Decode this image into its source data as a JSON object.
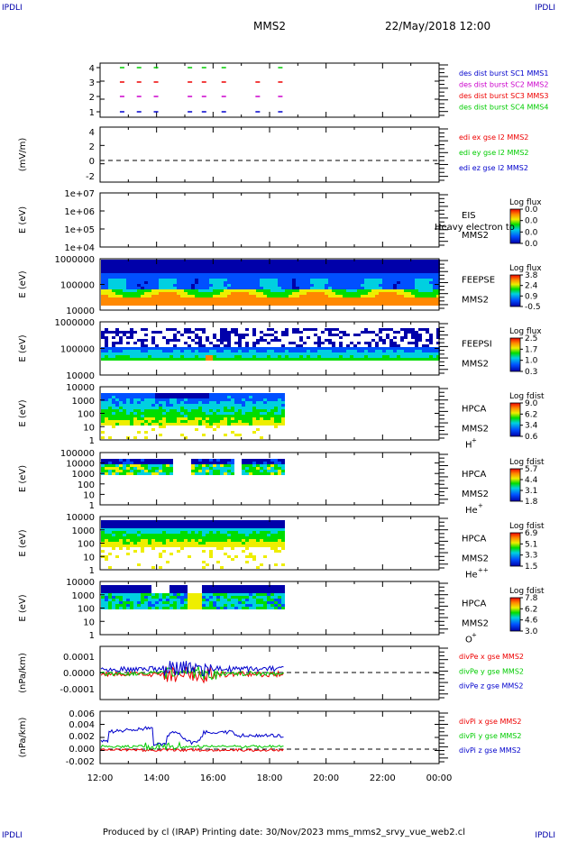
{
  "corners": {
    "tl": "IPDLI",
    "tr": "IPDLI",
    "bl": "IPDLI",
    "br": "IPDLI"
  },
  "header": {
    "spacecraft": "MMS2",
    "datetime": "22/May/2018 12:00"
  },
  "footer": {
    "text": "Produced by cl (IRAP)    Printing date: 30/Nov/2023    mms_mms2_srvy_vue_web2.cl"
  },
  "time_axis": {
    "ticks": [
      "12:00",
      "14:00",
      "16:00",
      "18:00",
      "20:00",
      "22:00",
      "00:00"
    ]
  },
  "colors": {
    "red": "#ee0000",
    "green": "#00cc00",
    "blue": "#0000cc",
    "magenta": "#cc00cc"
  },
  "chart_data": [
    {
      "id": "dist_burst",
      "type": "scatter",
      "yticks": [
        "1",
        "2",
        "3",
        "4"
      ],
      "legend": [
        {
          "text": "des dist burst SC1 MMS1",
          "color": "#0000cc"
        },
        {
          "text": "des dist burst SC2 MMS2",
          "color": "#cc00cc"
        },
        {
          "text": "des dist burst SC3 MMS3",
          "color": "#ee0000"
        },
        {
          "text": "des dist burst SC4 MMS4",
          "color": "#00cc00"
        }
      ],
      "series": [
        {
          "level": 4,
          "color": "#00cc00",
          "hours": [
            12.7,
            13.3,
            13.9,
            15.1,
            15.6,
            16.3,
            18.3
          ]
        },
        {
          "level": 3,
          "color": "#ee0000",
          "hours": [
            12.7,
            13.3,
            13.9,
            15.1,
            15.6,
            16.3,
            17.5,
            18.3
          ]
        },
        {
          "level": 2,
          "color": "#cc00cc",
          "hours": [
            12.7,
            13.3,
            13.9,
            15.1,
            15.6,
            16.3,
            17.5,
            18.3
          ]
        },
        {
          "level": 1,
          "color": "#0000cc",
          "hours": [
            12.7,
            13.3,
            13.9,
            15.1,
            15.6,
            16.3,
            17.5,
            18.3
          ]
        }
      ]
    },
    {
      "id": "edi",
      "type": "line",
      "ylabel": "(mV/m)",
      "yticks": [
        "4",
        "2",
        "0",
        "-2"
      ],
      "legend": [
        {
          "text": "edi ex gse l2 MMS2",
          "color": "#ee0000"
        },
        {
          "text": "edi ey gse l2 MMS2",
          "color": "#00cc00"
        },
        {
          "text": "edi ez gse l2 MMS2",
          "color": "#0000cc"
        }
      ]
    },
    {
      "id": "eis",
      "type": "heatmap",
      "ylabel": "E (eV)",
      "yticks": [
        "1e+07",
        "1e+06",
        "1e+05",
        "1e+04"
      ],
      "instrument": "EIS",
      "sc": "MMS2",
      "extra": "Heavy electron to",
      "cbar_title": "Log flux",
      "cbar_ticks": [
        "0.0",
        "0.0",
        "0.0",
        "0.0"
      ]
    },
    {
      "id": "feepse",
      "type": "heatmap",
      "ylabel": "E (eV)",
      "yticks": [
        "1000000",
        "100000",
        "10000"
      ],
      "instrument": "FEEPSE",
      "sc": "MMS2",
      "cbar_title": "Log flux",
      "cbar_ticks": [
        "3.8",
        "2.4",
        "0.9",
        "-0.5"
      ]
    },
    {
      "id": "feepsi",
      "type": "heatmap",
      "ylabel": "E (eV)",
      "yticks": [
        "1000000",
        "100000",
        "10000"
      ],
      "instrument": "FEEPSI",
      "sc": "MMS2",
      "cbar_title": "Log flux",
      "cbar_ticks": [
        "2.5",
        "1.7",
        "1.0",
        "0.3"
      ]
    },
    {
      "id": "hpca_h",
      "type": "heatmap",
      "ylabel": "E (eV)",
      "yticks": [
        "10000",
        "1000",
        "100",
        "10",
        "1"
      ],
      "instrument": "HPCA",
      "sc": "MMS2",
      "species": "H",
      "charge": "+",
      "cbar_title": "Log fdist",
      "cbar_ticks": [
        "9.0",
        "6.2",
        "3.4",
        "0.6"
      ]
    },
    {
      "id": "hpca_he",
      "type": "heatmap",
      "ylabel": "E (eV)",
      "yticks": [
        "100000",
        "10000",
        "1000",
        "100",
        "10",
        "1"
      ],
      "instrument": "HPCA",
      "sc": "MMS2",
      "species": "He",
      "charge": "+",
      "cbar_title": "Log fdist",
      "cbar_ticks": [
        "5.7",
        "4.4",
        "3.1",
        "1.8"
      ]
    },
    {
      "id": "hpca_hepp",
      "type": "heatmap",
      "ylabel": "E (eV)",
      "yticks": [
        "10000",
        "1000",
        "100",
        "10",
        "1"
      ],
      "instrument": "HPCA",
      "sc": "MMS2",
      "species": "He",
      "charge": "++",
      "cbar_title": "Log fdist",
      "cbar_ticks": [
        "6.9",
        "5.1",
        "3.3",
        "1.5"
      ]
    },
    {
      "id": "hpca_o",
      "type": "heatmap",
      "ylabel": "E (eV)",
      "yticks": [
        "10000",
        "1000",
        "100",
        "10",
        "1"
      ],
      "instrument": "HPCA",
      "sc": "MMS2",
      "species": "O",
      "charge": "+",
      "cbar_title": "Log fdist",
      "cbar_ticks": [
        "7.8",
        "6.2",
        "4.6",
        "3.0"
      ]
    },
    {
      "id": "divpe",
      "type": "line",
      "ylabel": "(nPa/km)",
      "yticks": [
        "0.0001",
        "0.0000",
        "-0.0001"
      ],
      "legend": [
        {
          "text": "divPe x gse MMS2",
          "color": "#ee0000"
        },
        {
          "text": "divPe y gse MMS2",
          "color": "#00cc00"
        },
        {
          "text": "divPe z gse MMS2",
          "color": "#0000cc"
        }
      ]
    },
    {
      "id": "divpi",
      "type": "line",
      "ylabel": "(nPa/km)",
      "yticks": [
        "0.006",
        "0.004",
        "0.002",
        "0.000",
        "-0.002"
      ],
      "legend": [
        {
          "text": "divPi x gse MMS2",
          "color": "#ee0000"
        },
        {
          "text": "divPi y gse MMS2",
          "color": "#00cc00"
        },
        {
          "text": "divPi z gse MMS2",
          "color": "#0000cc"
        }
      ]
    }
  ]
}
